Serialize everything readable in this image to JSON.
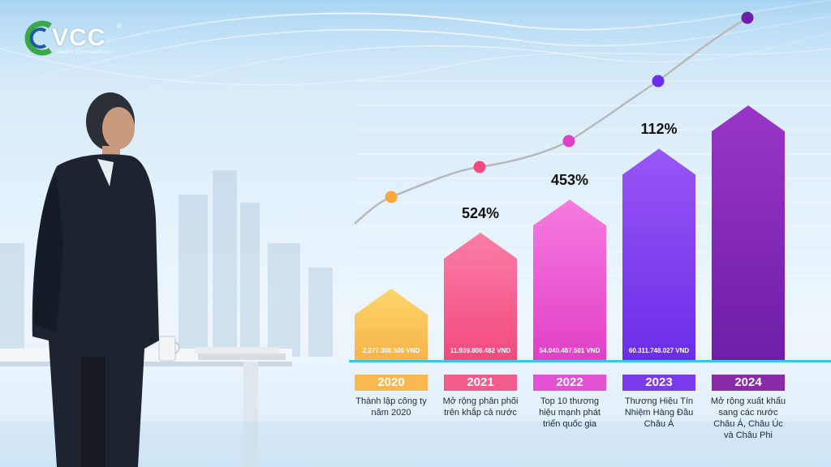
{
  "brand": {
    "name": "VCC",
    "registered": "®",
    "tagline": "HAPPY COOPERATION",
    "colors": {
      "green": "#3aa84a",
      "blue": "#1f5aa6"
    }
  },
  "chart_data": {
    "type": "bar",
    "categories": [
      "2020",
      "2021",
      "2022",
      "2023",
      "2024"
    ],
    "values_text": [
      "2.277.308.500 VND",
      "11.939.808.482 VND",
      "54.040.487.501 VND",
      "60.311.748.027 VND",
      ""
    ],
    "values": [
      2277308500,
      11939808482,
      54040487501,
      60311748027,
      null
    ],
    "growth_labels": [
      "",
      "524%",
      "453%",
      "112%",
      ""
    ],
    "descriptions": [
      "Thành lập công ty năm 2020",
      "Mở rộng phân phối trên khắp cả nước",
      "Top 10 thương hiệu mạnh phát triển quốc gia",
      "Thương Hiệu Tín Nhiệm Hàng Đầu Châu Á",
      "Mở rộng xuất khẩu sang các nước Châu Á, Châu Úc và Châu Phi"
    ],
    "bar_colors": [
      [
        "#f7b44a",
        "#fcd66a"
      ],
      [
        "#f24a7e",
        "#fb7ea6"
      ],
      [
        "#e040c6",
        "#f77be0"
      ],
      [
        "#6a2ee8",
        "#9a55f5"
      ],
      [
        "#6e1ea8",
        "#9a35c8"
      ]
    ],
    "badge_colors": [
      "#f7b84f",
      "#f25c8a",
      "#e352d2",
      "#7c3aed",
      "#8a2aa8"
    ],
    "trend_dot_colors": [
      "#f7a93e",
      "#f24a7e",
      "#e040c6",
      "#6a2ee8",
      "#6e1ea8"
    ],
    "relative_heights": [
      0.28,
      0.5,
      0.63,
      0.83,
      1.0
    ],
    "grid": true,
    "legend": "none"
  }
}
